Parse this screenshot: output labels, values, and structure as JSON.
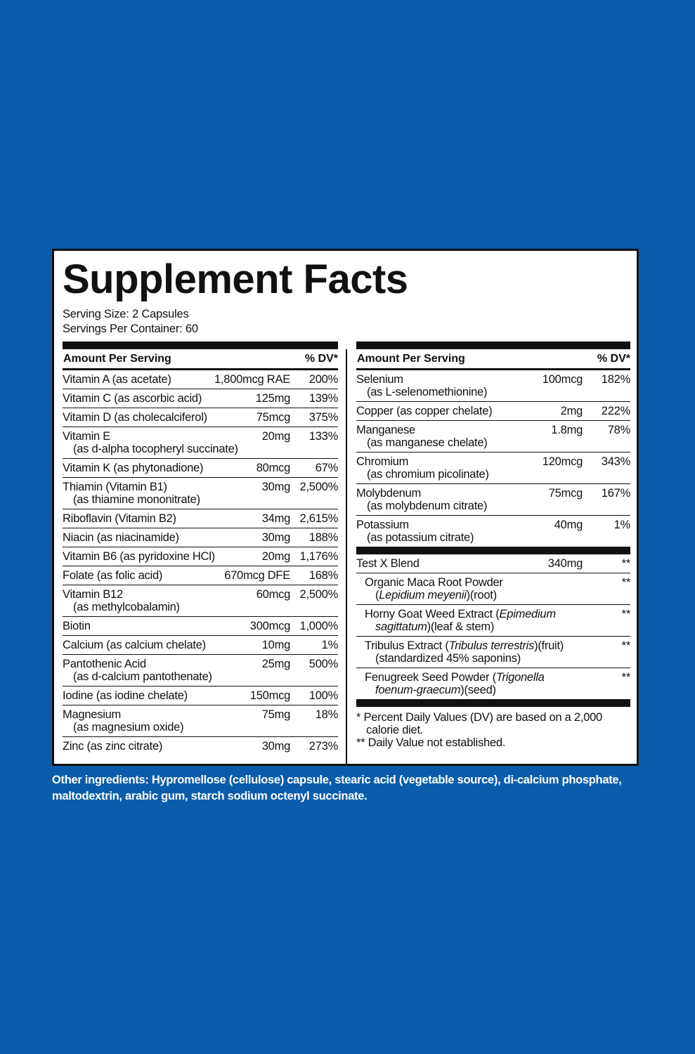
{
  "title": "Supplement Facts",
  "serving_size": "Serving Size: 2 Capsules",
  "servings_per_container": "Servings Per Container: 60",
  "left": {
    "header": {
      "name": "Amount Per Serving",
      "dv": "% DV*"
    },
    "rows": [
      {
        "name": "Vitamin A (as acetate)",
        "amount": "1,800mcg RAE",
        "dv": "200%"
      },
      {
        "name": "Vitamin C (as ascorbic acid)",
        "amount": "125mg",
        "dv": "139%"
      },
      {
        "name": "Vitamin D (as cholecalciferol)",
        "amount": "75mcg",
        "dv": "375%"
      },
      {
        "name": "Vitamin E",
        "sub": "(as d-alpha tocopheryl succinate)",
        "amount": "20mg",
        "dv": "133%"
      },
      {
        "name": "Vitamin K (as phytonadione)",
        "amount": "80mcg",
        "dv": "67%"
      },
      {
        "name": "Thiamin (Vitamin B1)",
        "sub": "(as thiamine mononitrate)",
        "amount": "30mg",
        "dv": "2,500%"
      },
      {
        "name": "Riboflavin (Vitamin B2)",
        "amount": "34mg",
        "dv": "2,615%"
      },
      {
        "name": "Niacin (as niacinamide)",
        "amount": "30mg",
        "dv": "188%"
      },
      {
        "name": "Vitamin B6 (as pyridoxine HCl)",
        "amount": "20mg",
        "dv": "1,176%"
      },
      {
        "name": "Folate (as folic acid)",
        "amount": "670mcg DFE",
        "dv": "168%"
      },
      {
        "name": "Vitamin B12",
        "sub": "(as methylcobalamin)",
        "amount": "60mcg",
        "dv": "2,500%"
      },
      {
        "name": "Biotin",
        "amount": "300mcg",
        "dv": "1,000%"
      },
      {
        "name": "Calcium (as calcium chelate)",
        "amount": "10mg",
        "dv": "1%"
      },
      {
        "name": "Pantothenic Acid",
        "sub": "(as d-calcium pantothenate)",
        "amount": "25mg",
        "dv": "500%"
      },
      {
        "name": "Iodine (as iodine chelate)",
        "amount": "150mcg",
        "dv": "100%"
      },
      {
        "name": "Magnesium",
        "sub": "(as magnesium oxide)",
        "amount": "75mg",
        "dv": "18%"
      },
      {
        "name": "Zinc (as zinc citrate)",
        "amount": "30mg",
        "dv": "273%"
      }
    ]
  },
  "right": {
    "header": {
      "name": "Amount Per Serving",
      "dv": "% DV*"
    },
    "rows": [
      {
        "name": "Selenium",
        "sub": "(as L-selenomethionine)",
        "amount": "100mcg",
        "dv": "182%"
      },
      {
        "name": "Copper (as copper chelate)",
        "amount": "2mg",
        "dv": "222%"
      },
      {
        "name": "Manganese",
        "sub": "(as manganese chelate)",
        "amount": "1.8mg",
        "dv": "78%"
      },
      {
        "name": "Chromium",
        "sub": "(as chromium picolinate)",
        "amount": "120mcg",
        "dv": "343%"
      },
      {
        "name": "Molybdenum",
        "sub": "(as molybdenum citrate)",
        "amount": "75mcg",
        "dv": "167%"
      },
      {
        "name": "Potassium",
        "sub": "(as potassium citrate)",
        "amount": "40mg",
        "dv": "1%"
      }
    ],
    "blend": {
      "name": "Test X Blend",
      "amount": "340mg",
      "dv": "**",
      "items": [
        {
          "lines": [
            [
              {
                "text": "Organic Maca Root Powder"
              }
            ],
            [
              {
                "text": "("
              },
              {
                "text": "Lepidium meyenii",
                "italic": true
              },
              {
                "text": ")(root)"
              }
            ]
          ],
          "dv": "**"
        },
        {
          "lines": [
            [
              {
                "text": "Horny Goat Weed Extract ("
              },
              {
                "text": "Epimedium",
                "italic": true
              }
            ],
            [
              {
                "text": "sagittatum",
                "italic": true
              },
              {
                "text": ")(leaf & stem)"
              }
            ]
          ],
          "dv": "**"
        },
        {
          "lines": [
            [
              {
                "text": "Tribulus Extract ("
              },
              {
                "text": "Tribulus terrestris",
                "italic": true
              },
              {
                "text": ")(fruit)"
              }
            ],
            [
              {
                "text": "(standardized 45% saponins)"
              }
            ]
          ],
          "dv": "**"
        },
        {
          "lines": [
            [
              {
                "text": "Fenugreek Seed Powder ("
              },
              {
                "text": "Trigonella",
                "italic": true
              }
            ],
            [
              {
                "text": "foenum-graecum",
                "italic": true
              },
              {
                "text": ")(seed)"
              }
            ]
          ],
          "dv": "**"
        }
      ]
    },
    "footnotes": [
      "* Percent Daily Values (DV) are based on a 2,000 calorie diet.",
      "** Daily Value not established."
    ]
  },
  "other_ingredients": "Other ingredients: Hypromellose (cellulose) capsule, stearic acid (vegetable source), di-calcium phosphate, maltodextrin, arabic gum, starch sodium octenyl succinate."
}
